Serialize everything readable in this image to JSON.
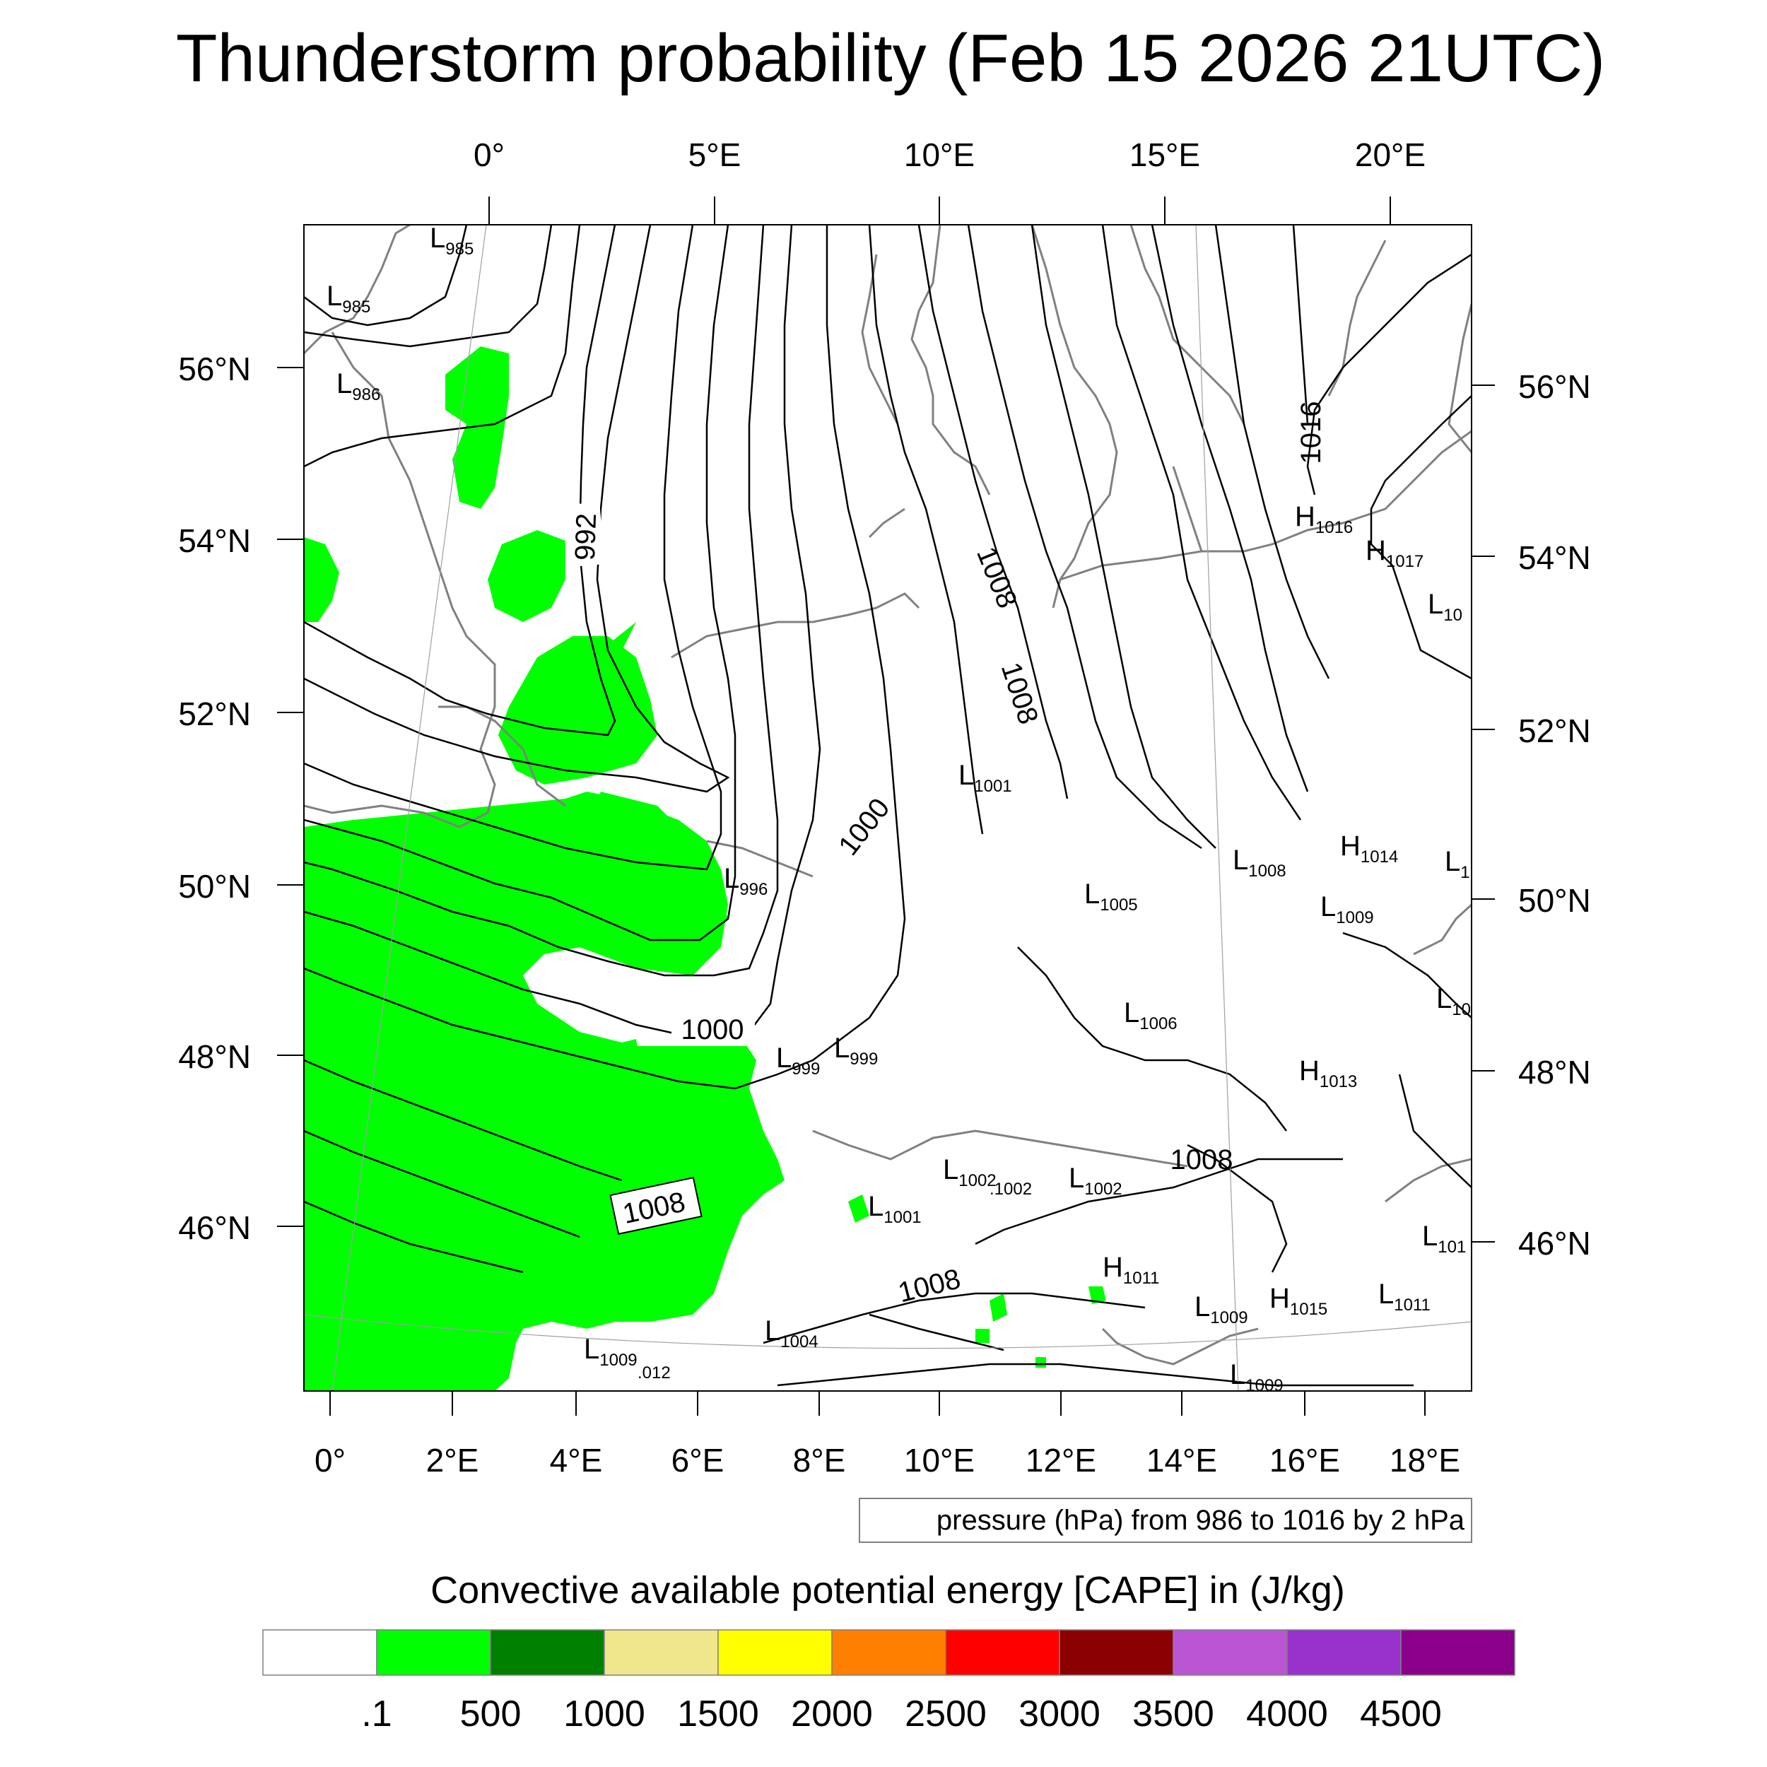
{
  "title": "Thunderstorm probability (Feb 15 2026 21UTC)",
  "top_lon_labels": [
    "0°",
    "5°E",
    "10°E",
    "15°E",
    "20°E"
  ],
  "bottom_lon_labels": [
    "0°",
    "2°E",
    "4°E",
    "6°E",
    "8°E",
    "10°E",
    "12°E",
    "14°E",
    "16°E",
    "18°E"
  ],
  "left_lat_labels": [
    "56°N",
    "54°N",
    "52°N",
    "50°N",
    "48°N",
    "46°N"
  ],
  "right_lat_labels": [
    "56°N",
    "54°N",
    "52°N",
    "50°N",
    "48°N",
    "46°N"
  ],
  "pressure_note": "pressure (hPa) from 986 to 1016 by 2 hPa",
  "colorbar": {
    "title": "Convective available potential energy [CAPE] in (J/kg)",
    "colors": [
      "#ffffff",
      "#00ff00",
      "#008000",
      "#f0e68c",
      "#ffff00",
      "#ff8000",
      "#ff0000",
      "#8b0000",
      "#ba55d3",
      "#9932cc",
      "#8b008b"
    ],
    "labels": [
      ".1",
      "500",
      "1000",
      "1500",
      "2000",
      "2500",
      "3000",
      "3500",
      "4000",
      "4500"
    ]
  },
  "pressure_systems": [
    {
      "type": "L",
      "value": "985"
    },
    {
      "type": "L",
      "value": "985"
    },
    {
      "type": "L",
      "value": "986"
    },
    {
      "type": "H",
      "value": "1016"
    },
    {
      "type": "H",
      "value": "1017"
    },
    {
      "type": "L",
      "value": "10"
    },
    {
      "type": "L",
      "value": "1001"
    },
    {
      "type": "H",
      "value": "1014"
    },
    {
      "type": "L",
      "value": "1008"
    },
    {
      "type": "L",
      "value": "1"
    },
    {
      "type": "L",
      "value": "996"
    },
    {
      "type": "L",
      "value": "1005"
    },
    {
      "type": "L",
      "value": "1009"
    },
    {
      "type": "L",
      "value": "10"
    },
    {
      "type": "L",
      "value": "1006"
    },
    {
      "type": "L",
      "value": "999"
    },
    {
      "type": "L",
      "value": "999"
    },
    {
      "type": "H",
      "value": "1013"
    },
    {
      "type": "L",
      "value": "1002"
    },
    {
      "type": "L",
      "value": "1002"
    },
    {
      "type": "L",
      "value": "1001"
    },
    {
      "type": "L",
      "value": "101"
    },
    {
      "type": "H",
      "value": "1011"
    },
    {
      "type": "H",
      "value": "1015"
    },
    {
      "type": "L",
      "value": "1011"
    },
    {
      "type": "L",
      "value": "1009"
    },
    {
      "type": "L",
      "value": "1004"
    },
    {
      "type": "L",
      "value": "1009"
    },
    {
      "type": "L",
      "value": "1009"
    }
  ],
  "stray_labels": [
    ".1002",
    ".012"
  ],
  "isobar_labels": [
    "992",
    "1008",
    "1008",
    "1000",
    "1000",
    "1008",
    "1008",
    "1008",
    "1016"
  ]
}
